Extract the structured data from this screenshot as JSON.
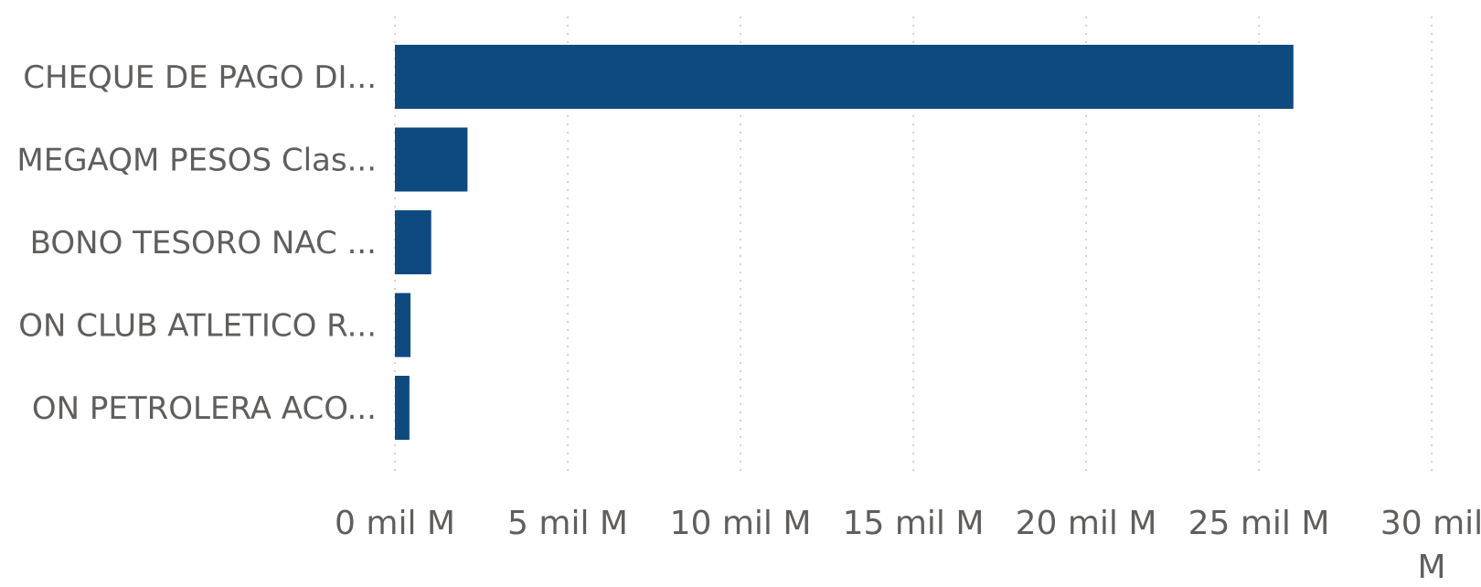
{
  "chart_data": {
    "type": "bar",
    "orientation": "horizontal",
    "categories": [
      "CHEQUE DE PAGO DI...",
      "MEGAQM PESOS Clas...",
      "BONO TESORO NAC ...",
      "ON CLUB ATLETICO R...",
      "ON PETROLERA ACO..."
    ],
    "values": [
      26.0,
      2.1,
      1.05,
      0.45,
      0.42
    ],
    "xlim": [
      0,
      30
    ],
    "x_ticks": [
      [
        "0 mil M"
      ],
      [
        "5 mil M"
      ],
      [
        "10 mil M"
      ],
      [
        "15 mil M"
      ],
      [
        "20 mil M"
      ],
      [
        "25 mil M"
      ],
      [
        "30 mil",
        "M"
      ]
    ],
    "grid": true,
    "grid_style": "dotted-vertical",
    "bar_color": "#0D4A80",
    "title": "",
    "xlabel": "",
    "ylabel": ""
  }
}
